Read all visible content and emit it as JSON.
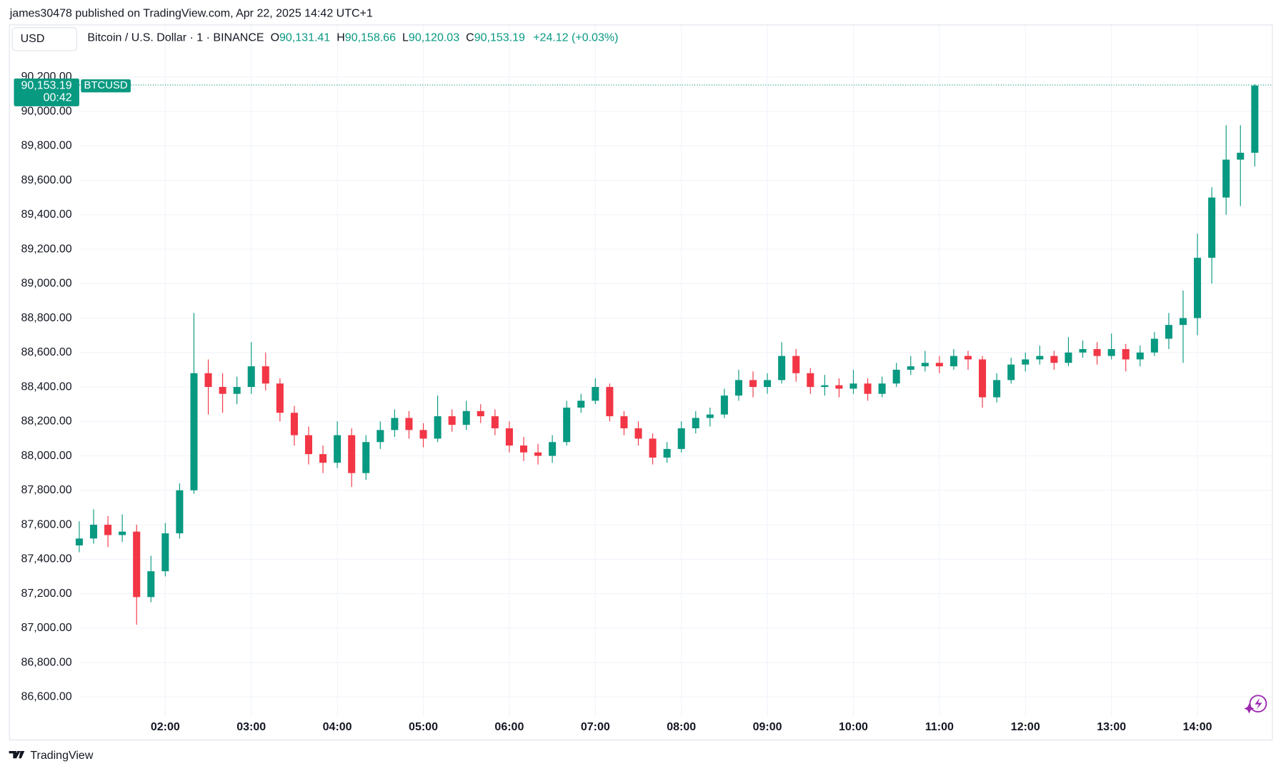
{
  "header": "james30478 published on TradingView.com, Apr 22, 2025 14:42 UTC+1",
  "currency_button": "USD",
  "footer": "TradingView",
  "chart_data": {
    "type": "candlestick",
    "symbol_title": "Bitcoin / U.S. Dollar · 1 · BINANCE",
    "legend": {
      "o_label": "O",
      "open": "90,131.41",
      "h_label": "H",
      "high": "90,158.66",
      "l_label": "L",
      "low": "90,120.03",
      "c_label": "C",
      "close": "90,153.19",
      "change": "+24.12 (+0.03%)"
    },
    "last_price": {
      "value": 90153.19,
      "label": "90,153.19"
    },
    "countdown": "00:42",
    "ticker": "BTCUSD",
    "up_color": "#089981",
    "down_color": "#f23645",
    "grid": true,
    "xlim": [
      "01:00",
      "14:52"
    ],
    "xticks": [
      "02:00",
      "03:00",
      "04:00",
      "05:00",
      "06:00",
      "07:00",
      "08:00",
      "09:00",
      "10:00",
      "11:00",
      "12:00",
      "13:00",
      "14:00"
    ],
    "ylim": [
      86490,
      90500
    ],
    "yticks": [
      {
        "value": 86600,
        "label": "86,600.00"
      },
      {
        "value": 86800,
        "label": "86,800.00"
      },
      {
        "value": 87000,
        "label": "87,000.00"
      },
      {
        "value": 87200,
        "label": "87,200.00"
      },
      {
        "value": 87400,
        "label": "87,400.00"
      },
      {
        "value": 87600,
        "label": "87,600.00"
      },
      {
        "value": 87800,
        "label": "87,800.00"
      },
      {
        "value": 88000,
        "label": "88,000.00"
      },
      {
        "value": 88200,
        "label": "88,200.00"
      },
      {
        "value": 88400,
        "label": "88,400.00"
      },
      {
        "value": 88600,
        "label": "88,600.00"
      },
      {
        "value": 88800,
        "label": "88,800.00"
      },
      {
        "value": 89000,
        "label": "89,000.00"
      },
      {
        "value": 89200,
        "label": "89,200.00"
      },
      {
        "value": 89400,
        "label": "89,400.00"
      },
      {
        "value": 89600,
        "label": "89,600.00"
      },
      {
        "value": 89800,
        "label": "89,800.00"
      },
      {
        "value": 90000,
        "label": "90,000.00"
      },
      {
        "value": 90200,
        "label": "90,200.00"
      }
    ],
    "x": [
      "01:00",
      "01:10",
      "01:20",
      "01:30",
      "01:40",
      "01:50",
      "02:00",
      "02:10",
      "02:20",
      "02:30",
      "02:40",
      "02:50",
      "03:00",
      "03:10",
      "03:20",
      "03:30",
      "03:40",
      "03:50",
      "04:00",
      "04:10",
      "04:20",
      "04:30",
      "04:40",
      "04:50",
      "05:00",
      "05:10",
      "05:20",
      "05:30",
      "05:40",
      "05:50",
      "06:00",
      "06:10",
      "06:20",
      "06:30",
      "06:40",
      "06:50",
      "07:00",
      "07:10",
      "07:20",
      "07:30",
      "07:40",
      "07:50",
      "08:00",
      "08:10",
      "08:20",
      "08:30",
      "08:40",
      "08:50",
      "09:00",
      "09:10",
      "09:20",
      "09:30",
      "09:40",
      "09:50",
      "10:00",
      "10:10",
      "10:20",
      "10:30",
      "10:40",
      "10:50",
      "11:00",
      "11:10",
      "11:20",
      "11:30",
      "11:40",
      "11:50",
      "12:00",
      "12:10",
      "12:20",
      "12:30",
      "12:40",
      "12:50",
      "13:00",
      "13:10",
      "13:20",
      "13:30",
      "13:40",
      "13:50",
      "14:00",
      "14:10",
      "14:20",
      "14:30",
      "14:40"
    ],
    "ohlc": [
      [
        87480,
        87620,
        87440,
        87520
      ],
      [
        87520,
        87690,
        87490,
        87600
      ],
      [
        87600,
        87650,
        87470,
        87540
      ],
      [
        87540,
        87660,
        87500,
        87560
      ],
      [
        87560,
        87600,
        87020,
        87180
      ],
      [
        87180,
        87420,
        87150,
        87330
      ],
      [
        87330,
        87610,
        87300,
        87550
      ],
      [
        87550,
        87840,
        87520,
        87800
      ],
      [
        87800,
        88830,
        87780,
        88480
      ],
      [
        88480,
        88560,
        88240,
        88400
      ],
      [
        88400,
        88480,
        88250,
        88360
      ],
      [
        88360,
        88460,
        88300,
        88400
      ],
      [
        88400,
        88660,
        88360,
        88520
      ],
      [
        88520,
        88600,
        88380,
        88420
      ],
      [
        88420,
        88450,
        88200,
        88250
      ],
      [
        88250,
        88290,
        88060,
        88120
      ],
      [
        88120,
        88170,
        87950,
        88010
      ],
      [
        88010,
        88060,
        87900,
        87960
      ],
      [
        87960,
        88200,
        87930,
        88120
      ],
      [
        88120,
        88160,
        87820,
        87900
      ],
      [
        87900,
        88120,
        87860,
        88080
      ],
      [
        88080,
        88200,
        88040,
        88150
      ],
      [
        88150,
        88270,
        88110,
        88220
      ],
      [
        88220,
        88260,
        88100,
        88150
      ],
      [
        88150,
        88190,
        88050,
        88100
      ],
      [
        88100,
        88350,
        88080,
        88230
      ],
      [
        88230,
        88270,
        88140,
        88180
      ],
      [
        88180,
        88320,
        88150,
        88260
      ],
      [
        88260,
        88300,
        88190,
        88230
      ],
      [
        88230,
        88270,
        88120,
        88160
      ],
      [
        88160,
        88200,
        88020,
        88060
      ],
      [
        88060,
        88110,
        87970,
        88020
      ],
      [
        88020,
        88070,
        87950,
        88000
      ],
      [
        88000,
        88120,
        87960,
        88080
      ],
      [
        88080,
        88320,
        88060,
        88280
      ],
      [
        88280,
        88360,
        88250,
        88320
      ],
      [
        88320,
        88450,
        88300,
        88400
      ],
      [
        88400,
        88420,
        88200,
        88230
      ],
      [
        88230,
        88260,
        88120,
        88160
      ],
      [
        88160,
        88200,
        88060,
        88100
      ],
      [
        88100,
        88130,
        87950,
        87990
      ],
      [
        87990,
        88080,
        87960,
        88040
      ],
      [
        88040,
        88200,
        88020,
        88160
      ],
      [
        88160,
        88260,
        88130,
        88220
      ],
      [
        88220,
        88280,
        88170,
        88240
      ],
      [
        88240,
        88390,
        88220,
        88350
      ],
      [
        88350,
        88500,
        88320,
        88440
      ],
      [
        88440,
        88490,
        88340,
        88400
      ],
      [
        88400,
        88480,
        88360,
        88440
      ],
      [
        88440,
        88660,
        88420,
        88580
      ],
      [
        88580,
        88620,
        88430,
        88480
      ],
      [
        88480,
        88510,
        88360,
        88400
      ],
      [
        88400,
        88470,
        88350,
        88410
      ],
      [
        88410,
        88450,
        88340,
        88390
      ],
      [
        88390,
        88500,
        88360,
        88420
      ],
      [
        88420,
        88450,
        88320,
        88360
      ],
      [
        88360,
        88460,
        88340,
        88420
      ],
      [
        88420,
        88540,
        88400,
        88500
      ],
      [
        88500,
        88580,
        88470,
        88520
      ],
      [
        88520,
        88610,
        88490,
        88540
      ],
      [
        88540,
        88580,
        88480,
        88520
      ],
      [
        88520,
        88620,
        88500,
        88580
      ],
      [
        88580,
        88610,
        88500,
        88560
      ],
      [
        88560,
        88580,
        88280,
        88340
      ],
      [
        88340,
        88480,
        88310,
        88440
      ],
      [
        88440,
        88570,
        88420,
        88530
      ],
      [
        88530,
        88600,
        88490,
        88560
      ],
      [
        88560,
        88640,
        88530,
        88580
      ],
      [
        88580,
        88610,
        88500,
        88540
      ],
      [
        88540,
        88690,
        88520,
        88600
      ],
      [
        88600,
        88670,
        88570,
        88620
      ],
      [
        88620,
        88660,
        88530,
        88580
      ],
      [
        88580,
        88710,
        88560,
        88620
      ],
      [
        88620,
        88650,
        88490,
        88560
      ],
      [
        88560,
        88640,
        88520,
        88600
      ],
      [
        88600,
        88720,
        88580,
        88680
      ],
      [
        88680,
        88830,
        88620,
        88760
      ],
      [
        88760,
        88960,
        88540,
        88800
      ],
      [
        88800,
        89290,
        88700,
        89150
      ],
      [
        89150,
        89560,
        89000,
        89500
      ],
      [
        89500,
        89920,
        89400,
        89720
      ],
      [
        89720,
        89920,
        89450,
        89760
      ],
      [
        89760,
        90158,
        89680,
        90150
      ]
    ]
  }
}
